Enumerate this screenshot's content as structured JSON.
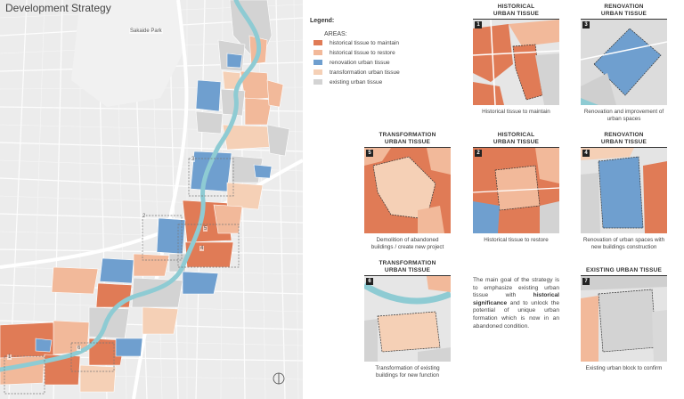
{
  "title": "Development Strategy",
  "colors": {
    "maintain": "#e07b56",
    "restore": "#f2b99a",
    "renovation": "#6f9fcf",
    "transformation": "#f5d0b6",
    "existing": "#d3d3d3",
    "river": "#8ecbd3",
    "road": "#ffffff",
    "background": "#ebebeb"
  },
  "legend": {
    "title": "Legend:",
    "areas_label": "AREAS:",
    "items": [
      {
        "label": "historical tissue to maintain",
        "color": "#e07b56"
      },
      {
        "label": "historical tissue to restore",
        "color": "#f2b99a"
      },
      {
        "label": "renovation urban tissue",
        "color": "#6f9fcf"
      },
      {
        "label": "transformation urban tissue",
        "color": "#f5d0b6"
      },
      {
        "label": "existing urban tissue",
        "color": "#d3d3d3"
      }
    ]
  },
  "map": {
    "place_label": "Sakaide Park",
    "markers": [
      "1",
      "2",
      "3",
      "4",
      "5",
      "6"
    ]
  },
  "panels": [
    {
      "num": "1",
      "heading": [
        "HISTORICAL",
        "URBAN TISSUE"
      ],
      "caption": [
        "Historical tissue to maintain"
      ]
    },
    {
      "num": "3",
      "heading": [
        "RENOVATION",
        "URBAN TISSUE"
      ],
      "caption": [
        "Renovation and improvement of",
        "urban spaces"
      ]
    },
    {
      "num": "5",
      "heading": [
        "TRANSFORMATION",
        "URBAN TISSUE"
      ],
      "caption": [
        "Demolition of abandoned",
        "buildings / create new project"
      ]
    },
    {
      "num": "2",
      "heading": [
        "HISTORICAL",
        "URBAN TISSUE"
      ],
      "caption": [
        "Historical tissue to restore"
      ]
    },
    {
      "num": "4",
      "heading": [
        "RENOVATION",
        "URBAN TISSUE"
      ],
      "caption": [
        "Renovation of urban spaces with",
        "new buildings construction"
      ]
    },
    {
      "num": "6",
      "heading": [
        "TRANSFORMATION",
        "URBAN TISSUE"
      ],
      "caption": [
        "Transformation of existing",
        "buildings for new function"
      ]
    },
    {
      "num": "7",
      "heading": [
        "EXISTING URBAN TISSUE"
      ],
      "caption": [
        "Existing urban block to confirm"
      ]
    }
  ],
  "description": {
    "part1": "The main goal of the strategy is to emphasize existing urban tissue with ",
    "bold": "historical significance",
    "part2": " and to unlock the potential of unique urban formation which is now in an abandoned condition."
  }
}
